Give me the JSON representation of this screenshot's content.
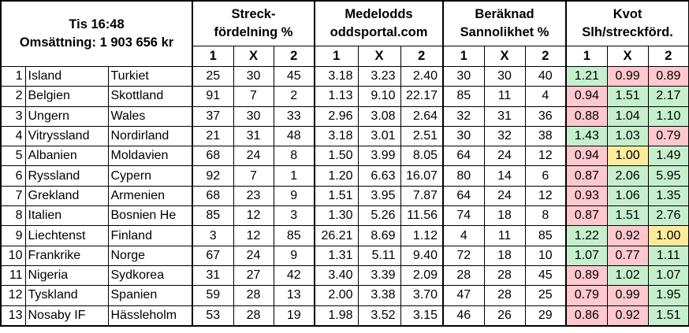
{
  "header": {
    "time": "Tis 16:48",
    "turnover": "Omsättning: 1 903 656 kr",
    "groups": [
      {
        "line1": "Streck-",
        "line2": "fördelning %"
      },
      {
        "line1": "Medelodds",
        "line2": "oddsportal.com"
      },
      {
        "line1": "Beräknad",
        "line2": "Sannolikhet %"
      },
      {
        "line1": "Kvot",
        "line2": "Slh/streckförd."
      }
    ],
    "sub": [
      "1",
      "X",
      "2"
    ]
  },
  "colors": {
    "green": "#c6efce",
    "red": "#ffc7ce",
    "yellow": "#ffeb9c"
  },
  "rows": [
    {
      "nr": "1",
      "home": "Island",
      "away": "Turkiet",
      "s": [
        "25",
        "30",
        "45"
      ],
      "o": [
        "3.18",
        "3.23",
        "2.40"
      ],
      "p": [
        "30",
        "30",
        "40"
      ],
      "k": [
        "1.21",
        "0.99",
        "0.89"
      ],
      "kc": [
        "green",
        "red",
        "red"
      ]
    },
    {
      "nr": "2",
      "home": "Belgien",
      "away": "Skottland",
      "s": [
        "91",
        "7",
        "2"
      ],
      "o": [
        "1.13",
        "9.10",
        "22.17"
      ],
      "p": [
        "85",
        "11",
        "4"
      ],
      "k": [
        "0.94",
        "1.51",
        "2.17"
      ],
      "kc": [
        "red",
        "green",
        "green"
      ]
    },
    {
      "nr": "3",
      "home": "Ungern",
      "away": "Wales",
      "s": [
        "37",
        "30",
        "33"
      ],
      "o": [
        "2.96",
        "3.08",
        "2.64"
      ],
      "p": [
        "32",
        "31",
        "36"
      ],
      "k": [
        "0.88",
        "1.04",
        "1.10"
      ],
      "kc": [
        "red",
        "green",
        "green"
      ]
    },
    {
      "nr": "4",
      "home": "Vitryssland",
      "away": "Nordirland",
      "s": [
        "21",
        "31",
        "48"
      ],
      "o": [
        "3.18",
        "3.01",
        "2.51"
      ],
      "p": [
        "30",
        "32",
        "38"
      ],
      "k": [
        "1.43",
        "1.03",
        "0.79"
      ],
      "kc": [
        "green",
        "green",
        "red"
      ]
    },
    {
      "nr": "5",
      "home": "Albanien",
      "away": "Moldavien",
      "s": [
        "68",
        "24",
        "8"
      ],
      "o": [
        "1.50",
        "3.99",
        "8.05"
      ],
      "p": [
        "64",
        "24",
        "12"
      ],
      "k": [
        "0.94",
        "1.00",
        "1.49"
      ],
      "kc": [
        "red",
        "yellow",
        "green"
      ]
    },
    {
      "nr": "6",
      "home": "Ryssland",
      "away": "Cypern",
      "s": [
        "92",
        "7",
        "1"
      ],
      "o": [
        "1.20",
        "6.63",
        "16.07"
      ],
      "p": [
        "80",
        "14",
        "6"
      ],
      "k": [
        "0.87",
        "2.06",
        "5.95"
      ],
      "kc": [
        "red",
        "green",
        "green"
      ]
    },
    {
      "nr": "7",
      "home": "Grekland",
      "away": "Armenien",
      "s": [
        "68",
        "23",
        "9"
      ],
      "o": [
        "1.51",
        "3.95",
        "7.87"
      ],
      "p": [
        "64",
        "24",
        "12"
      ],
      "k": [
        "0.93",
        "1.06",
        "1.35"
      ],
      "kc": [
        "red",
        "green",
        "green"
      ]
    },
    {
      "nr": "8",
      "home": "Italien",
      "away": "Bosnien He",
      "s": [
        "85",
        "12",
        "3"
      ],
      "o": [
        "1.30",
        "5.26",
        "11.56"
      ],
      "p": [
        "74",
        "18",
        "8"
      ],
      "k": [
        "0.87",
        "1.51",
        "2.76"
      ],
      "kc": [
        "red",
        "green",
        "green"
      ]
    },
    {
      "nr": "9",
      "home": "Liechtenst",
      "away": "Finland",
      "s": [
        "3",
        "12",
        "85"
      ],
      "o": [
        "26.21",
        "8.69",
        "1.12"
      ],
      "p": [
        "4",
        "11",
        "85"
      ],
      "k": [
        "1.22",
        "0.92",
        "1.00"
      ],
      "kc": [
        "green",
        "red",
        "yellow"
      ]
    },
    {
      "nr": "10",
      "home": "Frankrike",
      "away": "Norge",
      "s": [
        "67",
        "24",
        "9"
      ],
      "o": [
        "1.31",
        "5.11",
        "9.40"
      ],
      "p": [
        "72",
        "18",
        "10"
      ],
      "k": [
        "1.07",
        "0.77",
        "1.11"
      ],
      "kc": [
        "green",
        "red",
        "green"
      ]
    },
    {
      "nr": "11",
      "home": "Nigeria",
      "away": "Sydkorea",
      "s": [
        "31",
        "27",
        "42"
      ],
      "o": [
        "3.40",
        "3.39",
        "2.09"
      ],
      "p": [
        "28",
        "28",
        "45"
      ],
      "k": [
        "0.89",
        "1.02",
        "1.07"
      ],
      "kc": [
        "red",
        "green",
        "green"
      ]
    },
    {
      "nr": "12",
      "home": "Tyskland",
      "away": "Spanien",
      "s": [
        "59",
        "28",
        "13"
      ],
      "o": [
        "2.00",
        "3.38",
        "3.70"
      ],
      "p": [
        "47",
        "28",
        "25"
      ],
      "k": [
        "0.79",
        "0.99",
        "1.95"
      ],
      "kc": [
        "red",
        "red",
        "green"
      ]
    },
    {
      "nr": "13",
      "home": "Nosaby IF",
      "away": "Hässleholm",
      "s": [
        "53",
        "28",
        "19"
      ],
      "o": [
        "1.98",
        "3.52",
        "3.15"
      ],
      "p": [
        "46",
        "26",
        "29"
      ],
      "k": [
        "0.86",
        "0.92",
        "1.51"
      ],
      "kc": [
        "red",
        "red",
        "green"
      ]
    }
  ]
}
